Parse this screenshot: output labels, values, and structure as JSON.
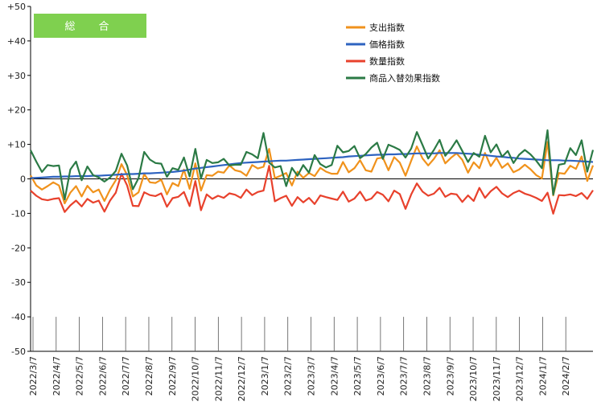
{
  "chart_data": {
    "type": "line",
    "panel_label": "総　合",
    "ylim": [
      -50,
      50
    ],
    "yticks": [
      50,
      40,
      30,
      20,
      10,
      0,
      -10,
      -20,
      -30,
      -40,
      -50
    ],
    "ytick_labels": [
      "+50",
      "+40",
      "+30",
      "+20",
      "+10",
      "0",
      "-10",
      "-20",
      "-30",
      "-40",
      "-50"
    ],
    "xtick_labels": [
      "2022/3/7",
      "2022/4/7",
      "2022/5/7",
      "2022/6/7",
      "2022/7/7",
      "2022/8/7",
      "2022/9/7",
      "2022/10/7",
      "2022/11/7",
      "2022/12/7",
      "2023/1/7",
      "2023/2/7",
      "2023/3/7",
      "2023/4/7",
      "2023/5/7",
      "2023/6/7",
      "2023/7/7",
      "2023/8/7",
      "2023/9/7",
      "2023/10/7",
      "2023/11/7",
      "2023/12/7",
      "2024/1/7",
      "2024/2/7"
    ],
    "x_start": "2022-03-07",
    "x_step_days": 7,
    "grid": false,
    "legend_position": "top-right",
    "colors": {
      "panel_bg": "#7fd04f",
      "axis": "#000000",
      "tick": "#555555"
    },
    "series": [
      {
        "name": "支出指数",
        "color": "#f0921c",
        "values": [
          1.0,
          -1.9,
          -3.1,
          -2.1,
          -1.0,
          -1.9,
          -7.1,
          -4.0,
          -2.1,
          -5.1,
          -2.0,
          -3.9,
          -3.1,
          -6.4,
          -3.1,
          -0.4,
          4.3,
          1.1,
          -5.1,
          -3.9,
          1.4,
          -1.0,
          -1.2,
          -0.2,
          -4.5,
          -1.2,
          -2.1,
          2.7,
          -2.9,
          4.5,
          -3.4,
          1.1,
          0.9,
          2.1,
          1.8,
          3.9,
          2.5,
          2.1,
          0.9,
          4.0,
          3.0,
          3.5,
          8.7,
          0.2,
          0.9,
          1.7,
          -1.9,
          2.1,
          0.3,
          1.7,
          0.8,
          3.2,
          2.1,
          1.5,
          1.5,
          4.9,
          1.9,
          3.1,
          5.4,
          2.5,
          2.1,
          5.9,
          6.2,
          2.5,
          6.3,
          4.7,
          0.9,
          5.3,
          9.4,
          5.9,
          3.9,
          5.8,
          8.3,
          4.5,
          6.1,
          7.4,
          5.5,
          1.8,
          4.8,
          3.1,
          7.5,
          3.7,
          6.1,
          3.2,
          4.5,
          1.9,
          2.7,
          4.1,
          2.8,
          1.1,
          0.1,
          10.7,
          -4.8,
          1.7,
          1.5,
          3.8,
          2.9,
          6.5,
          -0.6,
          3.9
        ]
      },
      {
        "name": "価格指数",
        "color": "#2e63c0",
        "values": [
          0.2,
          0.3,
          0.4,
          0.5,
          0.6,
          0.6,
          0.7,
          0.7,
          0.8,
          0.8,
          0.8,
          0.9,
          0.9,
          1.0,
          1.1,
          1.2,
          1.3,
          1.4,
          1.4,
          1.5,
          1.6,
          1.6,
          1.7,
          1.8,
          1.9,
          2.0,
          2.2,
          2.4,
          2.7,
          3.0,
          3.2,
          3.4,
          3.6,
          3.8,
          4.0,
          4.2,
          4.4,
          4.6,
          4.7,
          4.8,
          4.9,
          5.0,
          5.1,
          5.2,
          5.3,
          5.3,
          5.4,
          5.5,
          5.6,
          5.7,
          5.8,
          5.9,
          6.0,
          6.1,
          6.2,
          6.3,
          6.5,
          6.6,
          6.7,
          6.8,
          6.9,
          7.0,
          7.0,
          7.1,
          7.1,
          7.2,
          7.2,
          7.3,
          7.4,
          7.4,
          7.4,
          7.4,
          7.5,
          7.5,
          7.5,
          7.5,
          7.4,
          7.3,
          7.2,
          7.0,
          6.9,
          6.7,
          6.5,
          6.4,
          6.2,
          6.1,
          5.9,
          5.8,
          5.7,
          5.6,
          5.5,
          5.4,
          5.4,
          5.4,
          5.3,
          5.3,
          5.2,
          5.1,
          5.0,
          4.9
        ]
      },
      {
        "name": "数量指数",
        "color": "#e8412c",
        "values": [
          -3.4,
          -4.9,
          -5.9,
          -6.2,
          -5.8,
          -5.6,
          -9.6,
          -7.7,
          -6.3,
          -8.0,
          -5.8,
          -6.9,
          -6.3,
          -9.5,
          -6.3,
          -4.0,
          1.5,
          -1.9,
          -7.8,
          -7.9,
          -3.9,
          -4.7,
          -5.0,
          -4.2,
          -8.1,
          -5.6,
          -5.2,
          -3.8,
          -7.9,
          -0.6,
          -9.1,
          -4.5,
          -5.8,
          -4.9,
          -5.5,
          -4.2,
          -4.6,
          -5.5,
          -3.1,
          -4.7,
          -3.8,
          -3.4,
          3.8,
          -6.5,
          -5.6,
          -4.9,
          -7.8,
          -5.3,
          -6.8,
          -5.5,
          -7.3,
          -4.8,
          -5.3,
          -5.7,
          -6.1,
          -3.7,
          -6.6,
          -5.7,
          -3.7,
          -6.3,
          -5.7,
          -3.8,
          -4.6,
          -6.5,
          -3.4,
          -4.4,
          -8.7,
          -4.5,
          -1.3,
          -3.7,
          -4.9,
          -4.3,
          -2.6,
          -5.2,
          -4.3,
          -4.5,
          -6.7,
          -4.8,
          -6.4,
          -2.6,
          -5.5,
          -3.6,
          -2.3,
          -4.2,
          -5.3,
          -4.1,
          -3.4,
          -4.3,
          -4.8,
          -5.5,
          -6.4,
          -4.0,
          -10.1,
          -4.7,
          -4.8,
          -4.5,
          -5.0,
          -4.1,
          -5.8,
          -3.3
        ]
      },
      {
        "name": "商品入替効果指数",
        "color": "#2b7a45",
        "values": [
          8.3,
          5.0,
          2.0,
          4.0,
          3.7,
          3.9,
          -6.0,
          2.7,
          5.0,
          -0.4,
          3.6,
          1.1,
          0.4,
          -0.8,
          0.4,
          2.3,
          7.3,
          3.9,
          -3.0,
          0.2,
          7.8,
          5.6,
          4.6,
          4.4,
          0.6,
          3.1,
          2.6,
          6.2,
          0.7,
          8.7,
          0.1,
          5.5,
          4.6,
          4.8,
          5.8,
          3.9,
          4.1,
          4.1,
          7.8,
          7.1,
          6.0,
          13.3,
          4.7,
          3.3,
          3.7,
          -2.1,
          3.2,
          0.9,
          4.0,
          1.8,
          6.9,
          4.3,
          3.3,
          4.0,
          9.6,
          7.7,
          8.1,
          9.5,
          6.0,
          7.2,
          9.1,
          10.5,
          5.8,
          9.9,
          9.2,
          8.4,
          6.2,
          8.8,
          13.6,
          9.8,
          5.9,
          8.4,
          11.3,
          6.7,
          8.7,
          11.2,
          8.1,
          4.9,
          7.5,
          6.4,
          12.5,
          7.7,
          10.0,
          6.4,
          8.1,
          4.6,
          7.0,
          8.4,
          7.1,
          5.3,
          3.1,
          14.1,
          -4.6,
          4.1,
          4.4,
          8.9,
          6.9,
          11.2,
          2.1,
          8.4
        ]
      }
    ]
  }
}
